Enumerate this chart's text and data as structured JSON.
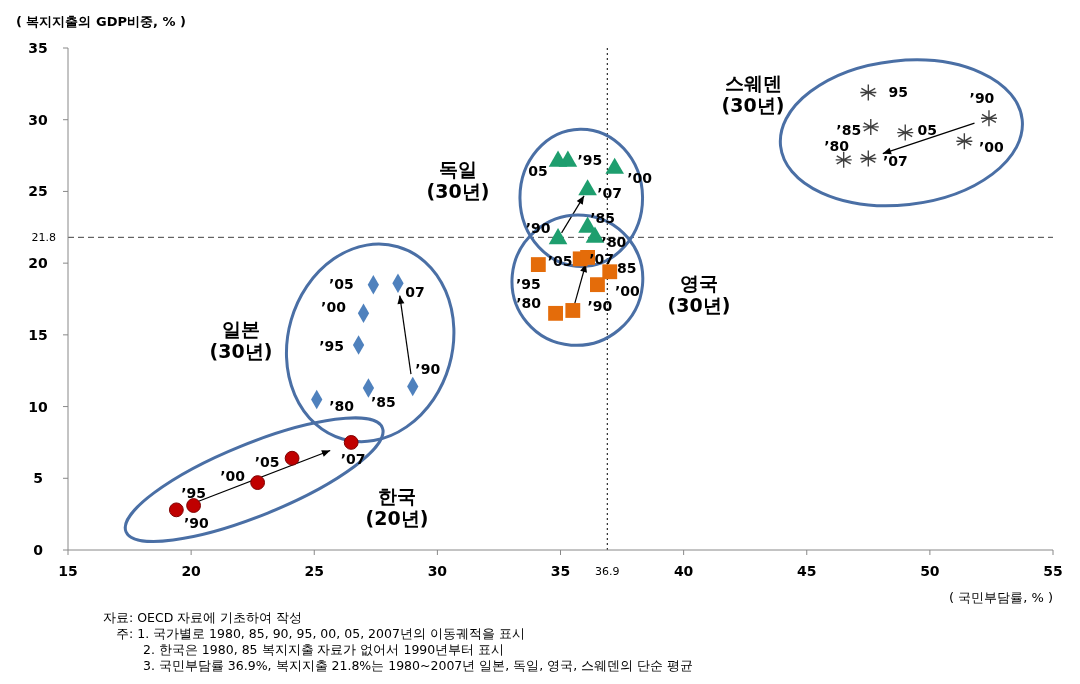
{
  "chart_data": {
    "type": "scatter",
    "xlabel": "( 국민부담률,  % )",
    "ylabel": "( 복지지출의 GDP비중,  % )",
    "xlim": [
      15,
      55
    ],
    "xticks": [
      15,
      20,
      25,
      30,
      35,
      40,
      45,
      50,
      55
    ],
    "ylim": [
      0,
      35
    ],
    "yticks": [
      0,
      5,
      10,
      15,
      20,
      25,
      30,
      35
    ],
    "grid": false,
    "series": [
      {
        "color": "#c00000",
        "marker": "circle",
        "x": [
          19.4,
          20.1,
          22.7,
          24.1,
          26.5
        ],
        "values": [
          2.8,
          3.1,
          4.7,
          6.4,
          7.5
        ]
      },
      {
        "color": "#4f81bd",
        "marker": "diamond",
        "x": [
          25.1,
          27.2,
          29.0,
          26.8,
          27.0,
          27.4,
          28.4
        ],
        "values": [
          10.5,
          11.3,
          11.4,
          14.3,
          16.5,
          18.5,
          18.6
        ]
      },
      {
        "color": "#1e9e6e",
        "marker": "triangle",
        "x": [
          36.4,
          36.1,
          34.9,
          35.3,
          37.2,
          34.9,
          36.1
        ],
        "values": [
          21.8,
          22.5,
          21.7,
          27.1,
          26.6,
          27.1,
          25.1
        ]
      },
      {
        "color": "#e46c0a",
        "marker": "square",
        "x": [
          34.8,
          37.0,
          35.5,
          34.1,
          36.5,
          35.8,
          36.1
        ],
        "values": [
          16.5,
          19.4,
          16.7,
          19.9,
          18.5,
          20.3,
          20.4
        ]
      },
      {
        "color": "#404040",
        "marker": "cross",
        "x": [
          46.5,
          47.6,
          52.4,
          47.5,
          51.4,
          49.0,
          47.5
        ],
        "values": [
          27.2,
          29.5,
          30.1,
          31.9,
          28.5,
          29.1,
          27.3
        ]
      }
    ],
    "ref_lines": [
      {
        "axis": "x",
        "value": 36.9,
        "label": "36.9",
        "line_style": "dotted",
        "color": "#000000"
      },
      {
        "axis": "y",
        "value": 21.8,
        "label": "21.8",
        "line_style": "dashed",
        "color": "#404040"
      }
    ],
    "annotations": [
      "한국\n(20년)",
      "일본\n(30년)",
      "독일\n(30년)",
      "영국\n(30년)",
      "스웨덴\n(30년)",
      {
        "text": "’90",
        "x": 19.4,
        "y": 2.8
      },
      {
        "text": "’95",
        "x": 20.1,
        "y": 3.1
      },
      {
        "text": "’00",
        "x": 22.7,
        "y": 4.7
      },
      {
        "text": "’05",
        "x": 24.1,
        "y": 6.4
      },
      {
        "text": "’07",
        "x": 26.5,
        "y": 7.5
      },
      {
        "text": "’80",
        "x": 25.1,
        "y": 10.5
      },
      {
        "text": "’85",
        "x": 27.2,
        "y": 11.3
      },
      {
        "text": "’90",
        "x": 29.0,
        "y": 11.4
      },
      {
        "text": "’95",
        "x": 26.8,
        "y": 14.3
      },
      {
        "text": "’00",
        "x": 27.0,
        "y": 16.5
      },
      {
        "text": "’05",
        "x": 27.4,
        "y": 18.5
      },
      {
        "text": "07",
        "x": 28.4,
        "y": 18.6
      },
      {
        "text": "’80",
        "x": 36.4,
        "y": 21.8
      },
      {
        "text": "’85",
        "x": 36.1,
        "y": 22.5
      },
      {
        "text": "’90",
        "x": 34.9,
        "y": 21.7
      },
      {
        "text": "’95",
        "x": 35.3,
        "y": 27.1
      },
      {
        "text": "’00",
        "x": 37.2,
        "y": 26.6
      },
      {
        "text": "05",
        "x": 34.9,
        "y": 27.1
      },
      {
        "text": "’07",
        "x": 36.1,
        "y": 25.1
      },
      {
        "text": "’80",
        "x": 34.8,
        "y": 16.5
      },
      {
        "text": "85",
        "x": 37.0,
        "y": 19.4
      },
      {
        "text": "’90",
        "x": 35.5,
        "y": 16.7
      },
      {
        "text": "’95",
        "x": 34.1,
        "y": 19.9
      },
      {
        "text": "’00",
        "x": 36.5,
        "y": 18.5
      },
      {
        "text": "’05",
        "x": 35.8,
        "y": 20.3
      },
      {
        "text": "’07",
        "x": 36.1,
        "y": 20.4
      },
      {
        "text": "’80",
        "x": 46.5,
        "y": 27.2
      },
      {
        "text": "’85",
        "x": 47.6,
        "y": 29.5
      },
      {
        "text": "’90",
        "x": 52.4,
        "y": 30.1
      },
      {
        "text": "95",
        "x": 47.5,
        "y": 31.9
      },
      {
        "text": "’00",
        "x": 51.4,
        "y": 28.5
      },
      {
        "text": "05",
        "x": 49.0,
        "y": 29.1
      },
      {
        "text": "’07",
        "x": 47.5,
        "y": 27.3
      },
      "자료: OECD 자료에 기초하여 작성",
      "주: 1. 국가별로 1980, 85, 90, 95, 00, 05, 2007년의 이동궤적을 표시",
      "2. 한국은 1980, 85 복지지출 자료가 없어서 1990년부터 표시",
      "3. 국민부담률 36.9%, 복지지출 21.8%는 1980~2007년 일본, 독일, 영국, 스웨덴의 단순 평균"
    ]
  }
}
